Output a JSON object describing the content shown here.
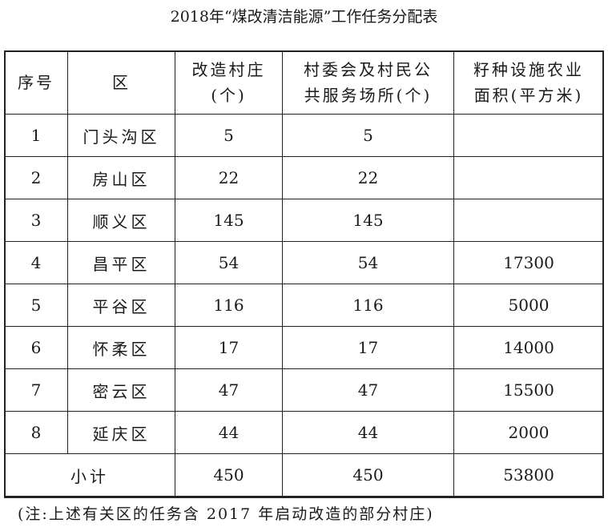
{
  "title": "2018年“煤改清洁能源”工作任务分配表",
  "headers": [
    "序号",
    "区",
    "改造村庄(个)",
    "村委会及村民公共服务场所(个)",
    "籽种设施农业面积(平方米)"
  ],
  "header_lines": [
    [
      "序号"
    ],
    [
      "区"
    ],
    [
      "改造村庄",
      "(个)"
    ],
    [
      "村委会及村民公",
      "共服务场所(个)"
    ],
    [
      "籽种设施农业",
      "面积(平方米)"
    ]
  ],
  "rows": [
    [
      "1",
      "门头沟区",
      "5",
      "5",
      ""
    ],
    [
      "2",
      "房山区",
      "22",
      "22",
      ""
    ],
    [
      "3",
      "顺义区",
      "145",
      "145",
      ""
    ],
    [
      "4",
      "昌平区",
      "54",
      "54",
      "17300"
    ],
    [
      "5",
      "平谷区",
      "116",
      "116",
      "5000"
    ],
    [
      "6",
      "怀柔区",
      "17",
      "17",
      "14000"
    ],
    [
      "7",
      "密云区",
      "47",
      "47",
      "15500"
    ],
    [
      "8",
      "延庆区",
      "44",
      "44",
      "2000"
    ]
  ],
  "subtotal": {
    "label": "小计",
    "villages": "450",
    "public_places": "450",
    "area": "53800"
  },
  "note": "(注:上述有关区的任务含 2017 年启动改造的部分村庄)"
}
